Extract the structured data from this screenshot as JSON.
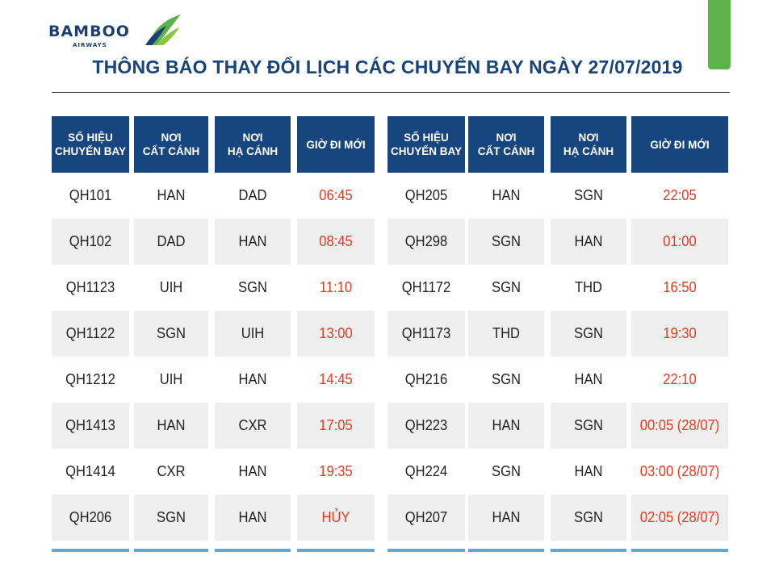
{
  "brand": {
    "name": "BAMBOO",
    "sub": "AIRWAYS",
    "colors": {
      "navy": "#17457d",
      "green": "#5db24a",
      "accent_red": "#e53a1e",
      "accent_blue": "#5aa9dd"
    }
  },
  "title": "THÔNG BÁO THAY ĐỔI LỊCH CÁC CHUYẾN BAY NGÀY 27/07/2019",
  "headers": [
    [
      "SỐ HIỆU",
      "CHUYẾN BAY"
    ],
    [
      "NƠI",
      "CẤT CÁNH"
    ],
    [
      "NƠI",
      "HẠ CÁNH"
    ],
    [
      "GIỜ ĐI MỚI"
    ]
  ],
  "left_table": [
    {
      "flight": "QH101",
      "from": "HAN",
      "to": "DAD",
      "time": "06:45"
    },
    {
      "flight": "QH102",
      "from": "DAD",
      "to": "HAN",
      "time": "08:45"
    },
    {
      "flight": "QH1123",
      "from": "UIH",
      "to": "SGN",
      "time": "11:10"
    },
    {
      "flight": "QH1122",
      "from": "SGN",
      "to": "UIH",
      "time": "13:00"
    },
    {
      "flight": "QH1212",
      "from": "UIH",
      "to": "HAN",
      "time": "14:45"
    },
    {
      "flight": "QH1413",
      "from": "HAN",
      "to": "CXR",
      "time": "17:05"
    },
    {
      "flight": "QH1414",
      "from": "CXR",
      "to": "HAN",
      "time": "19:35"
    },
    {
      "flight": "QH206",
      "from": "SGN",
      "to": "HAN",
      "time": "HỦY"
    }
  ],
  "right_table": [
    {
      "flight": "QH205",
      "from": "HAN",
      "to": "SGN",
      "time": "22:05"
    },
    {
      "flight": "QH298",
      "from": "SGN",
      "to": "HAN",
      "time": "01:00"
    },
    {
      "flight": "QH1172",
      "from": "SGN",
      "to": "THD",
      "time": "16:50"
    },
    {
      "flight": "QH1173",
      "from": "THD",
      "to": "SGN",
      "time": "19:30"
    },
    {
      "flight": "QH216",
      "from": "SGN",
      "to": "HAN",
      "time": "22:10"
    },
    {
      "flight": "QH223",
      "from": "HAN",
      "to": "SGN",
      "time": "00:05 (28/07)"
    },
    {
      "flight": "QH224",
      "from": "SGN",
      "to": "HAN",
      "time": "03:00 (28/07)"
    },
    {
      "flight": "QH207",
      "from": "HAN",
      "to": "SGN",
      "time": "02:05 (28/07)"
    }
  ]
}
